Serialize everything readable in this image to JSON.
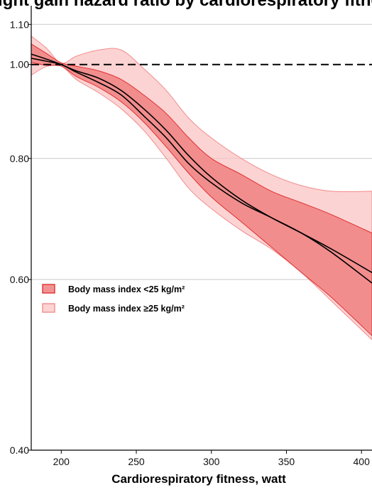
{
  "chart_data": {
    "type": "area",
    "title": "Weight gain hazard ratio by cardiorespiratory fitness",
    "xlabel": "Cardiorespiratory fitness, watt",
    "ylabel": "",
    "y_scale": "log",
    "xlim": [
      180,
      407
    ],
    "ylim": [
      0.4,
      1.15
    ],
    "x_ticks": [
      200,
      250,
      300,
      350,
      400
    ],
    "x_tick_labels": [
      "200",
      "250",
      "300",
      "350",
      "400"
    ],
    "y_ticks": [
      0.4,
      0.6,
      0.8,
      1.0,
      1.1
    ],
    "y_tick_labels": [
      "0.40",
      "0.60",
      "0.80",
      "1.00",
      "1.10"
    ],
    "grid": "horizontal",
    "reference_line": 1.0,
    "legend_position": "left-middle",
    "series": [
      {
        "name": "Body mass index <25 kg/m²",
        "color": "#f08080",
        "edge_color": "#e03030",
        "x": [
          180,
          190,
          200,
          210,
          225,
          240,
          255,
          270,
          285,
          300,
          320,
          340,
          360,
          380,
          407
        ],
        "estimate": [
          1.025,
          1.013,
          1.0,
          0.985,
          0.968,
          0.94,
          0.9,
          0.855,
          0.805,
          0.765,
          0.725,
          0.695,
          0.67,
          0.645,
          0.61
        ],
        "lower": [
          1.005,
          0.998,
          0.996,
          0.972,
          0.947,
          0.915,
          0.872,
          0.822,
          0.772,
          0.73,
          0.688,
          0.648,
          0.61,
          0.575,
          0.525
        ],
        "upper": [
          1.05,
          1.027,
          1.004,
          0.996,
          0.985,
          0.965,
          0.93,
          0.89,
          0.84,
          0.8,
          0.77,
          0.74,
          0.72,
          0.7,
          0.67
        ]
      },
      {
        "name": "Body mass index ≥25 kg/m²",
        "color": "#fbc4c4",
        "edge_color": "#f28c8c",
        "x": [
          180,
          190,
          200,
          210,
          225,
          240,
          255,
          270,
          285,
          300,
          320,
          340,
          360,
          380,
          407
        ],
        "estimate": [
          1.015,
          1.008,
          1.0,
          0.982,
          0.958,
          0.93,
          0.885,
          0.84,
          0.79,
          0.755,
          0.72,
          0.695,
          0.67,
          0.64,
          0.595
        ],
        "lower": [
          0.975,
          0.995,
          0.997,
          0.965,
          0.935,
          0.9,
          0.855,
          0.8,
          0.745,
          0.71,
          0.674,
          0.645,
          0.61,
          0.57,
          0.52
        ],
        "upper": [
          1.07,
          1.04,
          1.003,
          1.02,
          1.035,
          1.035,
          0.99,
          0.94,
          0.88,
          0.84,
          0.8,
          0.77,
          0.75,
          0.74,
          0.74
        ]
      }
    ]
  }
}
